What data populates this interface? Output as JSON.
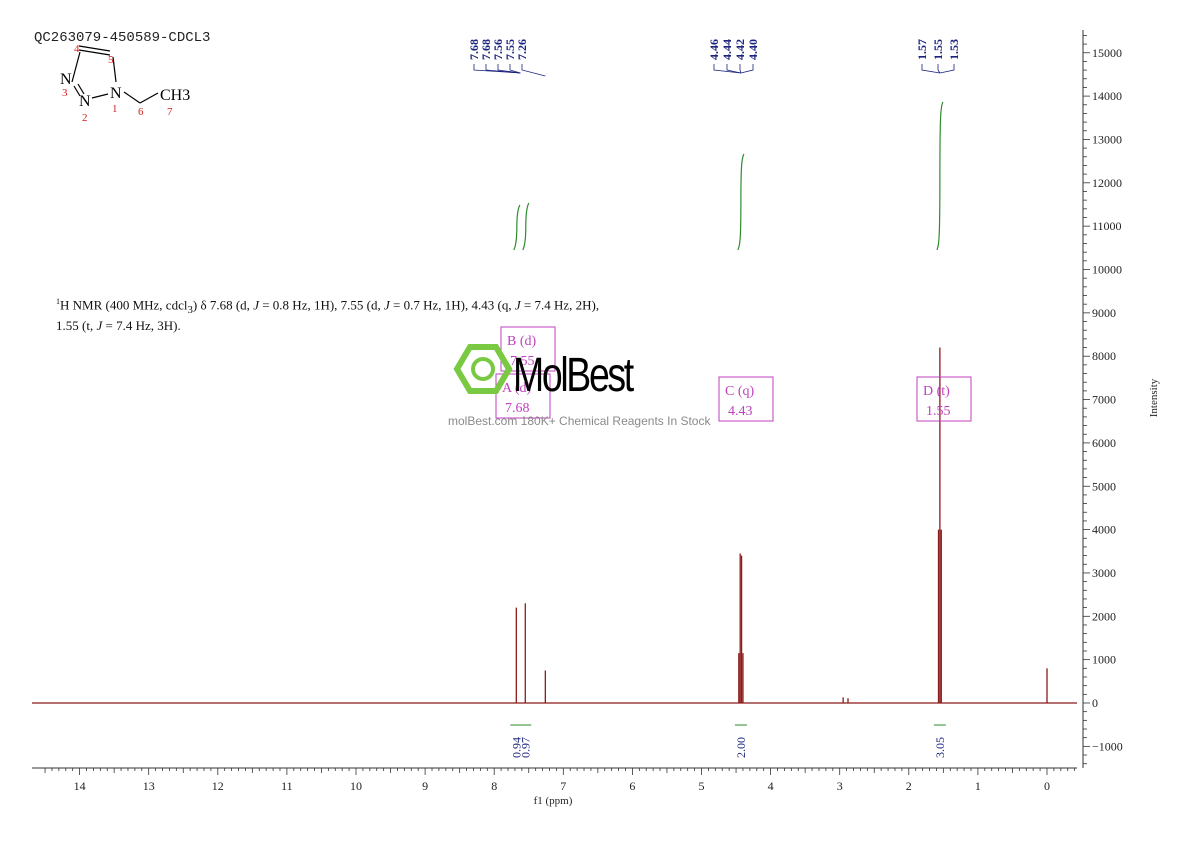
{
  "header": {
    "sample_id": "QC263079-450589-CDCL3",
    "nmr_description_html": "<sup>1</sup>H NMR (400 MHz, cdcl<sub>3</sub>) δ 7.68 (d, <i>J</i> = 0.8 Hz, 1H), 7.55 (d, <i>J</i> = 0.7 Hz, 1H), 4.43 (q, <i>J</i> = 7.4 Hz, 2H), 1.55 (t, <i>J</i> = 7.4 Hz, 3H)."
  },
  "watermark": {
    "brand": "MolBest",
    "tagline": "molBest.com 180K+ Chemical Reagents In Stock"
  },
  "structure": {
    "atoms": [
      "N",
      "N",
      "N",
      "CH3"
    ],
    "numbers": [
      "1",
      "2",
      "3",
      "4",
      "5",
      "6",
      "7"
    ]
  },
  "chart_data": {
    "type": "line",
    "xlabel": "f1 (ppm)",
    "ylabel": "Intensity",
    "xlim": [
      14.7,
      -0.4
    ],
    "ylim": [
      -1500,
      15500
    ],
    "x_ticks": [
      14,
      13,
      12,
      11,
      10,
      9,
      8,
      7,
      6,
      5,
      4,
      3,
      2,
      1,
      0
    ],
    "y_ticks": [
      -1000,
      0,
      1000,
      2000,
      3000,
      4000,
      5000,
      6000,
      7000,
      8000,
      9000,
      10000,
      11000,
      12000,
      13000,
      14000,
      15000
    ],
    "peaks": [
      {
        "ppm": 7.68,
        "height": 2200
      },
      {
        "ppm": 7.55,
        "height": 2300
      },
      {
        "ppm": 7.26,
        "height": 750
      },
      {
        "ppm": 4.46,
        "height": 1150
      },
      {
        "ppm": 4.44,
        "height": 3450
      },
      {
        "ppm": 4.42,
        "height": 3400
      },
      {
        "ppm": 4.4,
        "height": 1150
      },
      {
        "ppm": 1.57,
        "height": 4000
      },
      {
        "ppm": 1.55,
        "height": 8200
      },
      {
        "ppm": 1.53,
        "height": 4000
      },
      {
        "ppm": 2.95,
        "height": 130
      },
      {
        "ppm": 2.88,
        "height": 110
      },
      {
        "ppm": 0.0,
        "height": 800
      }
    ],
    "peak_labels": [
      {
        "text": "7.68",
        "ppm": 7.68
      },
      {
        "text": "7.68",
        "ppm": 7.68
      },
      {
        "text": "7.56",
        "ppm": 7.56
      },
      {
        "text": "7.55",
        "ppm": 7.55
      },
      {
        "text": "7.26",
        "ppm": 7.26
      },
      {
        "text": "4.46",
        "ppm": 4.46
      },
      {
        "text": "4.44",
        "ppm": 4.44
      },
      {
        "text": "4.42",
        "ppm": 4.42
      },
      {
        "text": "4.40",
        "ppm": 4.4
      },
      {
        "text": "1.57",
        "ppm": 1.57
      },
      {
        "text": "1.55",
        "ppm": 1.55
      },
      {
        "text": "1.53",
        "ppm": 1.53
      }
    ],
    "integrals": [
      {
        "value": "0.94",
        "ppm": 7.68
      },
      {
        "value": "0.97",
        "ppm": 7.55
      },
      {
        "value": "2.00",
        "ppm": 4.43
      },
      {
        "value": "3.05",
        "ppm": 1.55
      }
    ],
    "multiplets": [
      {
        "id": "A",
        "mult": "(d)",
        "shift": "7.68"
      },
      {
        "id": "B",
        "mult": "(d)",
        "shift": "7.55"
      },
      {
        "id": "C",
        "mult": "(q)",
        "shift": "4.43"
      },
      {
        "id": "D",
        "mult": "(t)",
        "shift": "1.55"
      }
    ],
    "colors": {
      "spectrum": "#8b1a1a",
      "integral": "#2e8b2e",
      "peak_label": "#1a237e",
      "multiplet": "#c040c0",
      "axis": "#333333"
    }
  }
}
